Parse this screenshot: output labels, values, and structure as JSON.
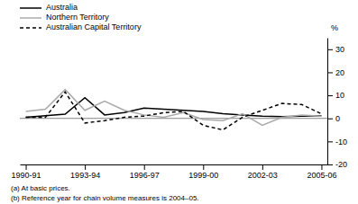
{
  "chart_data": {
    "type": "line",
    "categories": [
      "1990-91",
      null,
      null,
      "1993-94",
      null,
      null,
      "1996-97",
      null,
      null,
      "1999-00",
      null,
      null,
      "2002-03",
      null,
      null,
      "2005-06"
    ],
    "series": [
      {
        "name": "Australia",
        "color": "#000000",
        "line_style": "solid",
        "values": [
          0.5,
          1.2,
          1.8,
          9.0,
          1.5,
          2.5,
          4.5,
          4.0,
          3.5,
          3.0,
          2.0,
          1.5,
          1.0,
          0.8,
          1.0,
          1.2
        ]
      },
      {
        "name": "Northern Territory",
        "color": "#aaaaaa",
        "line_style": "solid",
        "values": [
          3.0,
          4.0,
          12.5,
          3.5,
          7.5,
          3.5,
          1.5,
          0.5,
          2.5,
          -0.5,
          -1.0,
          2.0,
          -3.0,
          0.5,
          1.5,
          1.0
        ]
      },
      {
        "name": "Australian Capital Territory",
        "color": "#000000",
        "line_style": "dashed",
        "values": [
          0.5,
          0.5,
          11.5,
          -2.0,
          -1.0,
          0.5,
          1.0,
          2.5,
          3.0,
          -3.0,
          -5.0,
          0.5,
          3.5,
          6.5,
          6.0,
          2.0
        ]
      }
    ],
    "ylabel": "%",
    "ylim": [
      -20,
      35
    ],
    "yticks": [
      -20,
      -10,
      0,
      10,
      20,
      30
    ],
    "grid": false,
    "legend": "top",
    "annotations": [
      "(a) At basic prices.",
      "(b) Reference year for chain volume measures is 2004–05."
    ]
  }
}
